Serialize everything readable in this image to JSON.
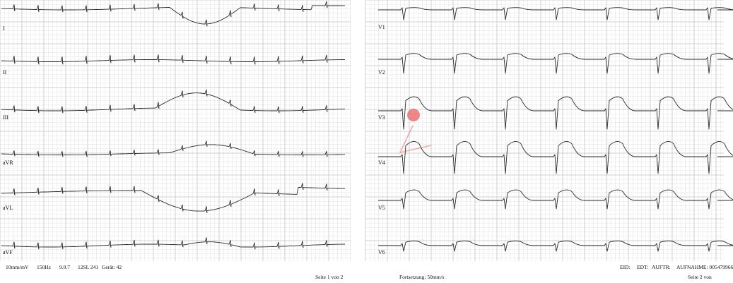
{
  "left_page": {
    "leads": [
      "I",
      "II",
      "III",
      "aVR",
      "aVL",
      "aVF"
    ],
    "info": {
      "gain": "10mm/mV",
      "filter": "150Hz",
      "version": "9.0.7",
      "program": "12SL 241",
      "device": "Gerät: 42"
    },
    "page_label": "Seite 1 von 2"
  },
  "right_page": {
    "leads": [
      "V1",
      "V2",
      "V3",
      "V4",
      "V5",
      "V6"
    ],
    "continuation": "Fortsetzung: 50mm/s",
    "ids": {
      "eid": "EID:",
      "edt": "EDT:",
      "auftr": "AUFTR:",
      "aufnahme": "AUFNAHME: 005479966"
    },
    "page_label": "Seite 2 von"
  },
  "colors": {
    "grid_minor": "#e2e2e2",
    "grid_major": "#c4c4c4",
    "trace": "#2a2a2a",
    "cursor_dot": "#e85a5a"
  }
}
